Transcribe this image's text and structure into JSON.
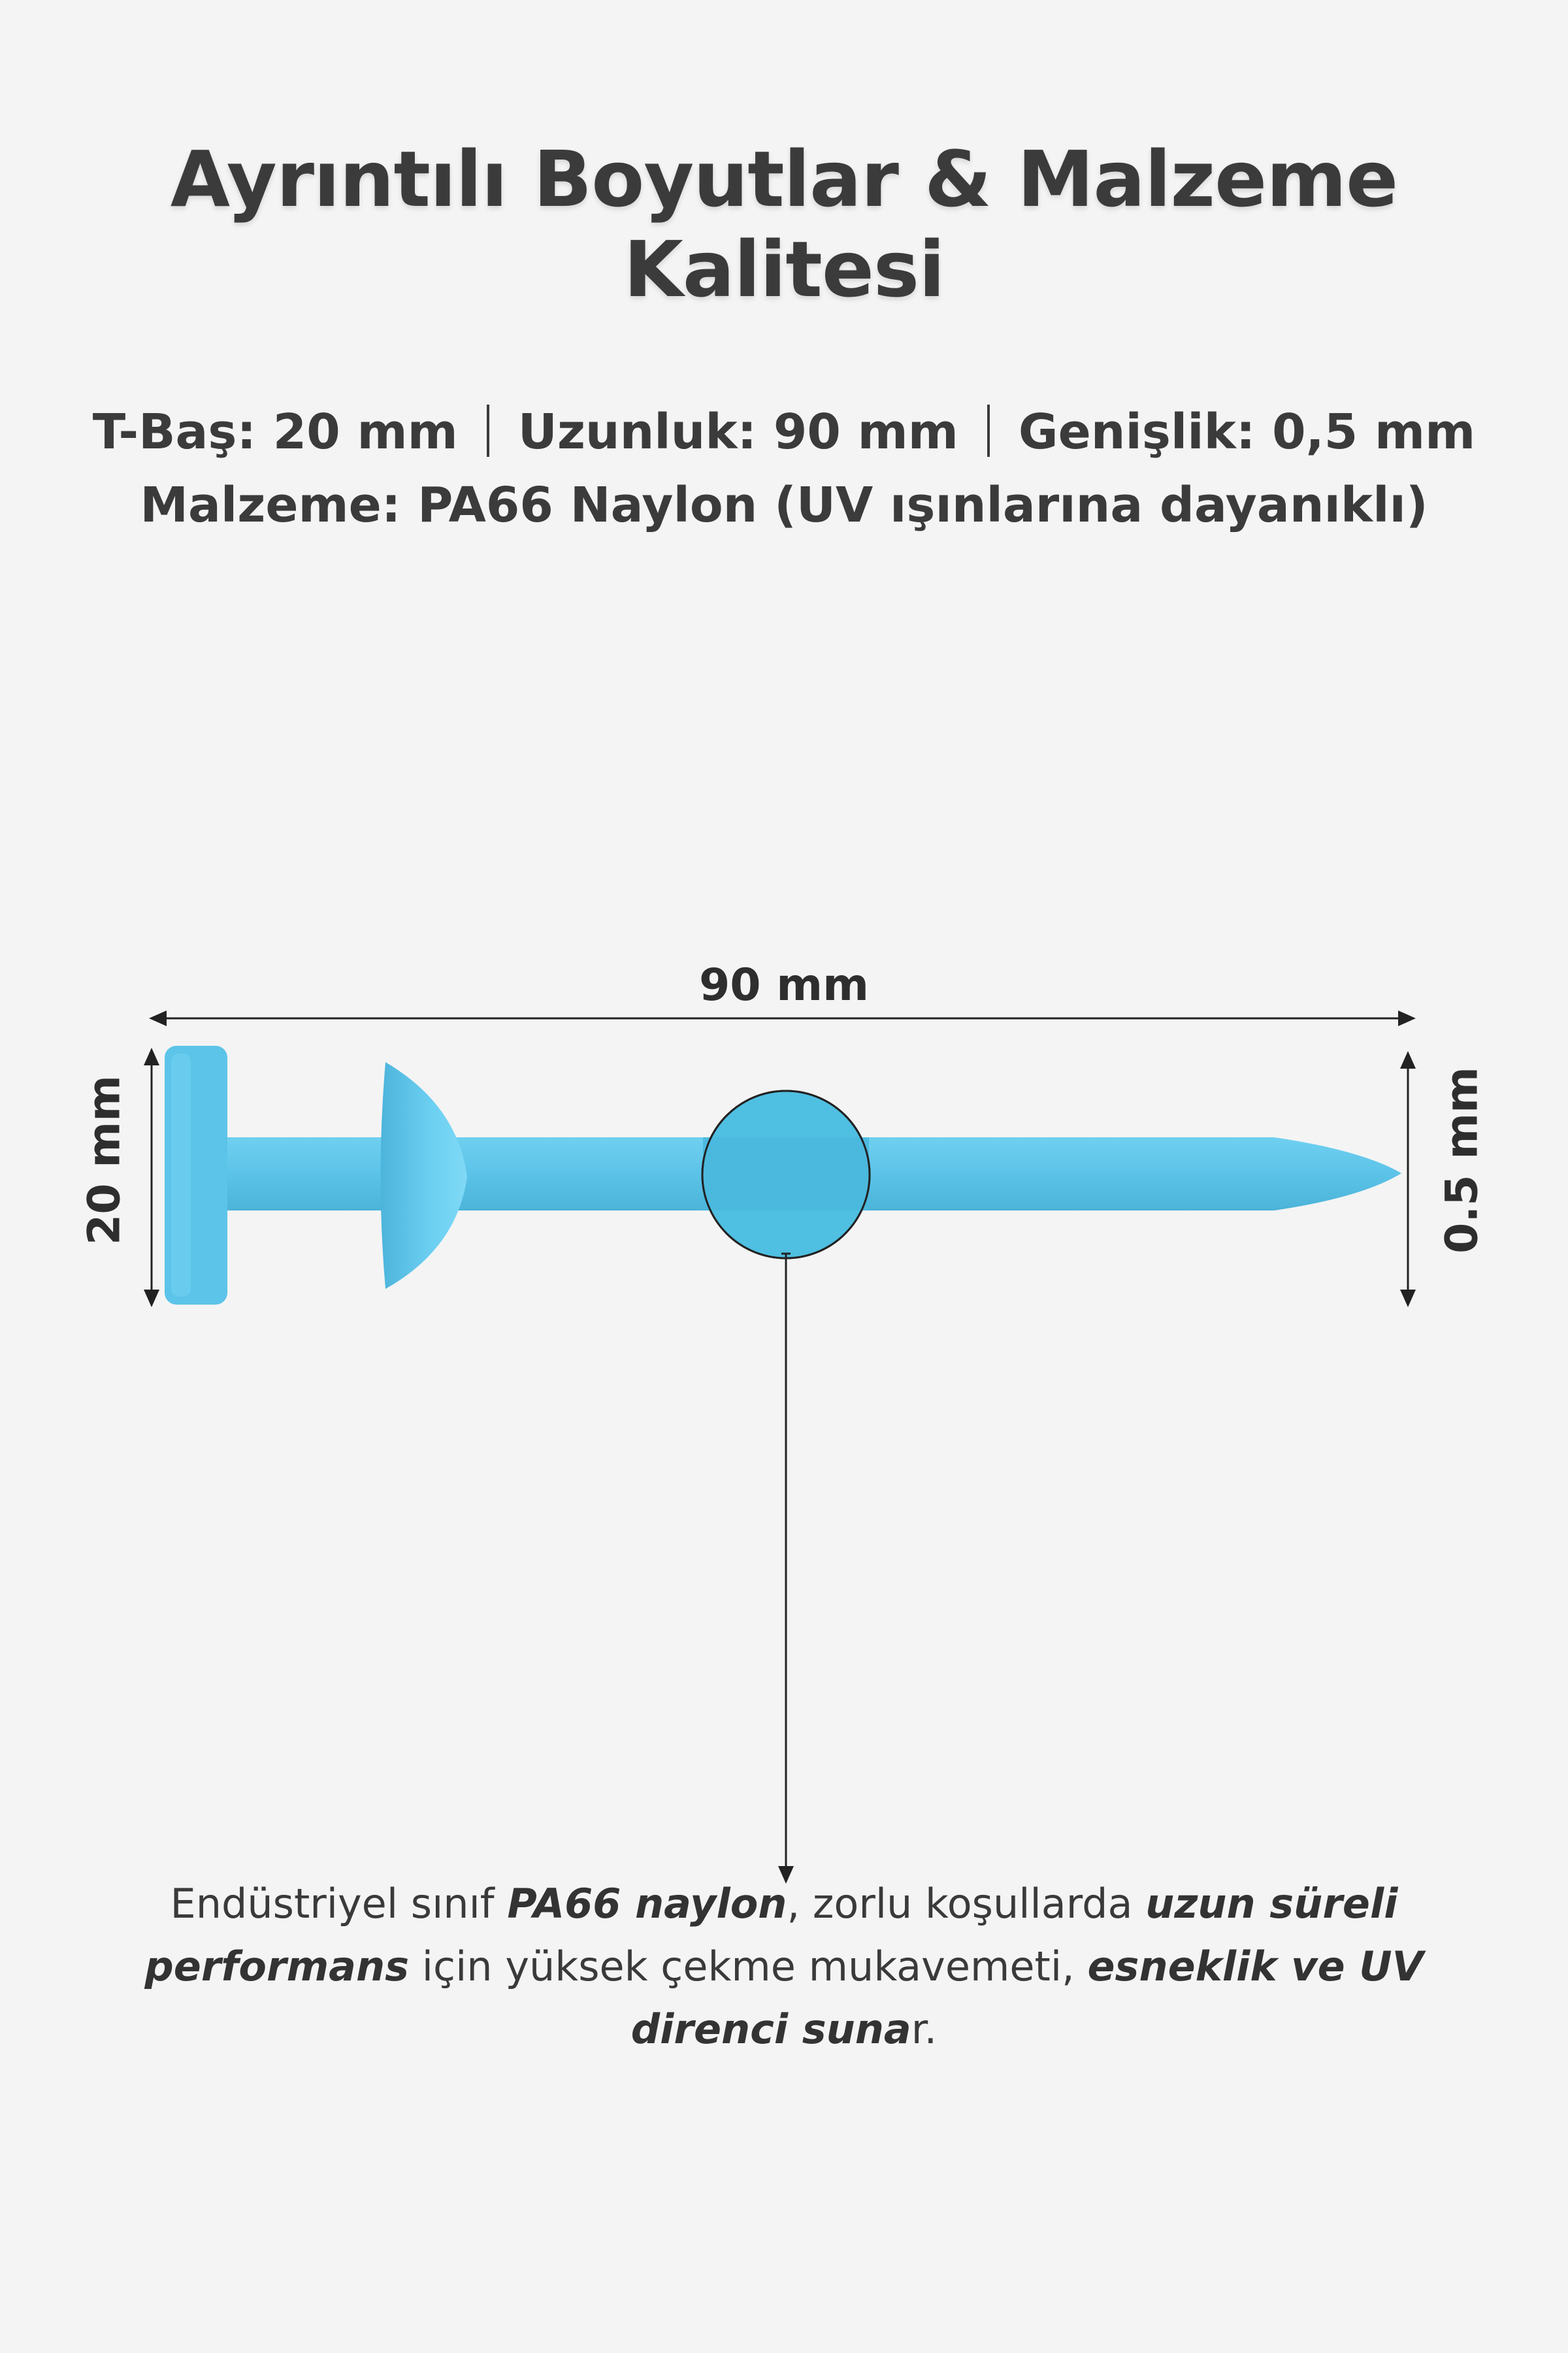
{
  "title": "Ayrıntılı Boyutlar & Malzeme Kalitesi",
  "specs": {
    "tbas": "T-Baş: 20 mm",
    "uzunluk": "Uzunluk: 90 mm",
    "genislik": "Genişlik: 0,5 mm",
    "malzeme": "Malzeme: PA66 Naylon (UV ışınlarına dayanıklı)"
  },
  "dimensions": {
    "length": "90 mm",
    "head": "20 mm",
    "width": "0.5 mm"
  },
  "description": {
    "p1": "Endüstriyel sınıf ",
    "b1": "PA66 naylon",
    "p2": ", zorlu koşullarda ",
    "b2": "uzun süreli performans",
    "p3": " için yüksek çekme mukavemeti, ",
    "b3": "esneklik ve UV direnci suna",
    "p4": "r."
  },
  "colors": {
    "pin": "#5fc6ea",
    "background": "#f4f4f4",
    "text": "#3b3b3b"
  }
}
